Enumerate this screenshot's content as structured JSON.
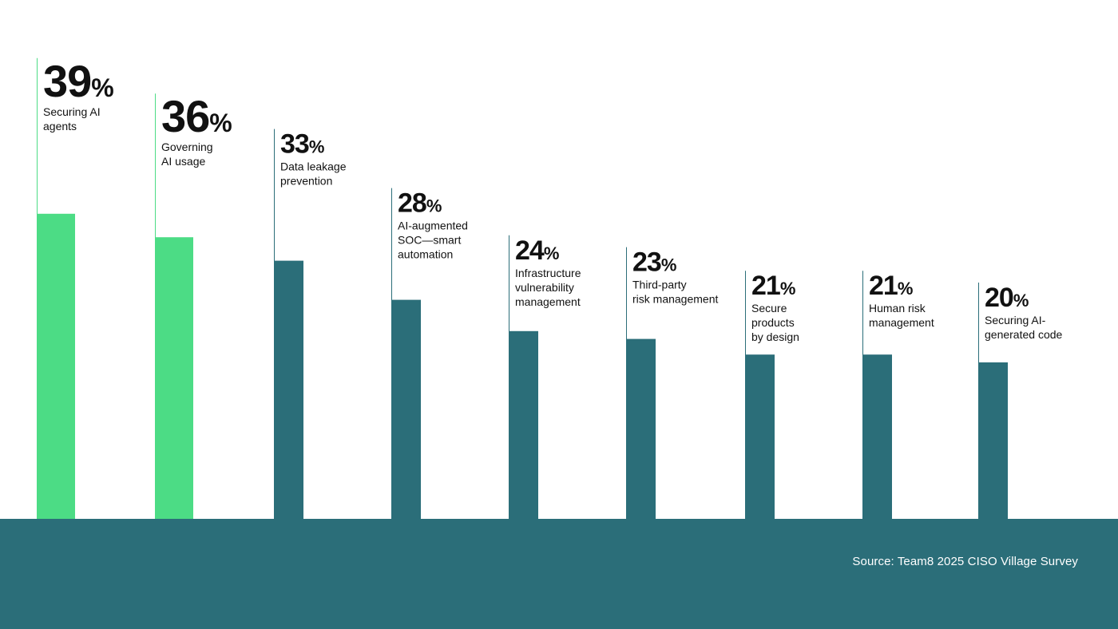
{
  "chart_data": {
    "type": "bar",
    "unit": "%",
    "categories": [
      "Securing AI agents",
      "Governing AI usage",
      "Data leakage prevention",
      "AI-augmented SOC—smart automation",
      "Infrastructure vulnerability management",
      "Third-party risk management",
      "Secure products by design",
      "Human risk management",
      "Securing AI-generated code"
    ],
    "values": [
      39,
      36,
      33,
      28,
      24,
      23,
      21,
      21,
      20
    ],
    "label_lines": [
      [
        "Securing AI",
        "agents"
      ],
      [
        "Governing",
        "AI usage"
      ],
      [
        "Data leakage",
        "prevention"
      ],
      [
        "AI-augmented",
        "SOC—smart",
        "automation"
      ],
      [
        "Infrastructure",
        "vulnerability",
        "management"
      ],
      [
        "Third-party",
        "risk management"
      ],
      [
        "Secure",
        "products",
        "by design"
      ],
      [
        "Human risk",
        "management"
      ],
      [
        "Securing AI-",
        "generated code"
      ]
    ],
    "highlighted": [
      true,
      true,
      false,
      false,
      false,
      false,
      false,
      false,
      false
    ],
    "colors": {
      "highlight": "#4cdc85",
      "normal": "#2b6e79",
      "line": "#2b6e79",
      "band": "#2b6e79",
      "text": "#111111"
    }
  },
  "footer": {
    "source": "Source: Team8 2025 CISO Village Survey"
  }
}
